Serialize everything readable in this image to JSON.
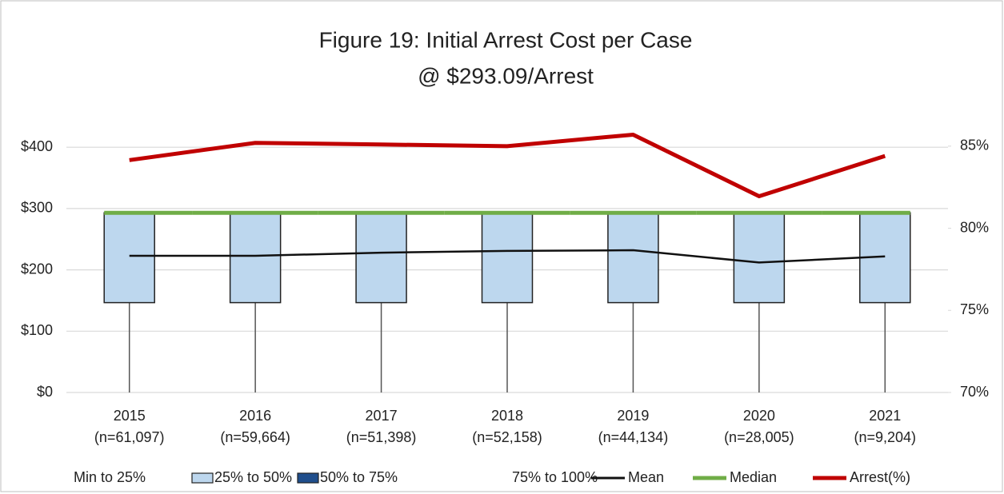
{
  "chart_data": {
    "type": "box",
    "title": [
      "Figure 19: Initial Arrest Cost per Case",
      "@ $293.09/Arrest"
    ],
    "categories": [
      "2015",
      "2016",
      "2017",
      "2018",
      "2019",
      "2020",
      "2021"
    ],
    "category_notes": [
      "(n=61,097)",
      "(n=59,664)",
      "(n=51,398)",
      "(n=52,158)",
      "(n=44,134)",
      "(n=28,005)",
      "(n=9,204)"
    ],
    "ylim": [
      0,
      450
    ],
    "yticks": [
      {
        "value": 0,
        "label": "$0"
      },
      {
        "value": 100,
        "label": "$100"
      },
      {
        "value": 200,
        "label": "$200"
      },
      {
        "value": 300,
        "label": "$300"
      },
      {
        "value": 400,
        "label": "$400"
      }
    ],
    "y2lim": [
      70,
      86.8
    ],
    "y2ticks": [
      {
        "value": 70,
        "label": "70%"
      },
      {
        "value": 75,
        "label": "75%"
      },
      {
        "value": 80,
        "label": "80%"
      },
      {
        "value": 85,
        "label": "85%"
      }
    ],
    "grid": true,
    "legend": "bottom",
    "series": [
      {
        "name": "Min to 25%",
        "type": "whisker",
        "color": "#555555",
        "values": [
          146.55,
          146.55,
          146.55,
          146.55,
          146.55,
          146.55,
          146.55
        ]
      },
      {
        "name": "25% to 50%",
        "type": "box",
        "color": "#bdd7ee",
        "values": [
          146.54,
          146.54,
          146.54,
          146.54,
          146.54,
          146.54,
          146.54
        ]
      },
      {
        "name": "50% to 75%",
        "type": "box",
        "color": "#1f4e8c",
        "values": [
          0,
          0,
          0,
          0,
          0,
          0,
          0
        ]
      },
      {
        "name": "75% to 100%",
        "type": "box-open",
        "color": "#ffffff",
        "values": [
          0,
          0,
          0,
          0,
          0,
          0,
          0
        ]
      },
      {
        "name": "Mean",
        "type": "line",
        "color": "#111111",
        "values": [
          223,
          223,
          228,
          231,
          232,
          212,
          222
        ]
      },
      {
        "name": "Median",
        "type": "median",
        "color": "#70ad47",
        "values": [
          293.09,
          293.09,
          293.09,
          293.09,
          293.09,
          293.09,
          293.09
        ]
      },
      {
        "name": "Arrest(%)",
        "type": "line",
        "axis": "y2",
        "color": "#c00000",
        "values": [
          84.15,
          85.2,
          85.1,
          85.0,
          85.7,
          81.95,
          84.4
        ]
      }
    ]
  }
}
